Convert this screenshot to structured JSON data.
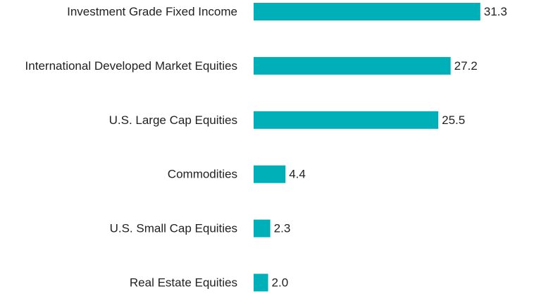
{
  "chart_data": {
    "type": "bar",
    "orientation": "horizontal",
    "categories": [
      "Investment Grade Fixed Income",
      "International Developed Market Equities",
      "U.S. Large Cap Equities",
      "Commodities",
      "U.S. Small Cap Equities",
      "Real Estate Equities"
    ],
    "values": [
      31.3,
      27.2,
      25.5,
      4.4,
      2.3,
      2.0
    ],
    "value_labels": [
      "31.3",
      "27.2",
      "25.5",
      "4.4",
      "2.3",
      "2.0"
    ],
    "title": "",
    "xlabel": "",
    "ylabel": "",
    "xlim": [
      0,
      40
    ],
    "grid": false,
    "legend": "none",
    "bar_color": "#00b0b9"
  }
}
